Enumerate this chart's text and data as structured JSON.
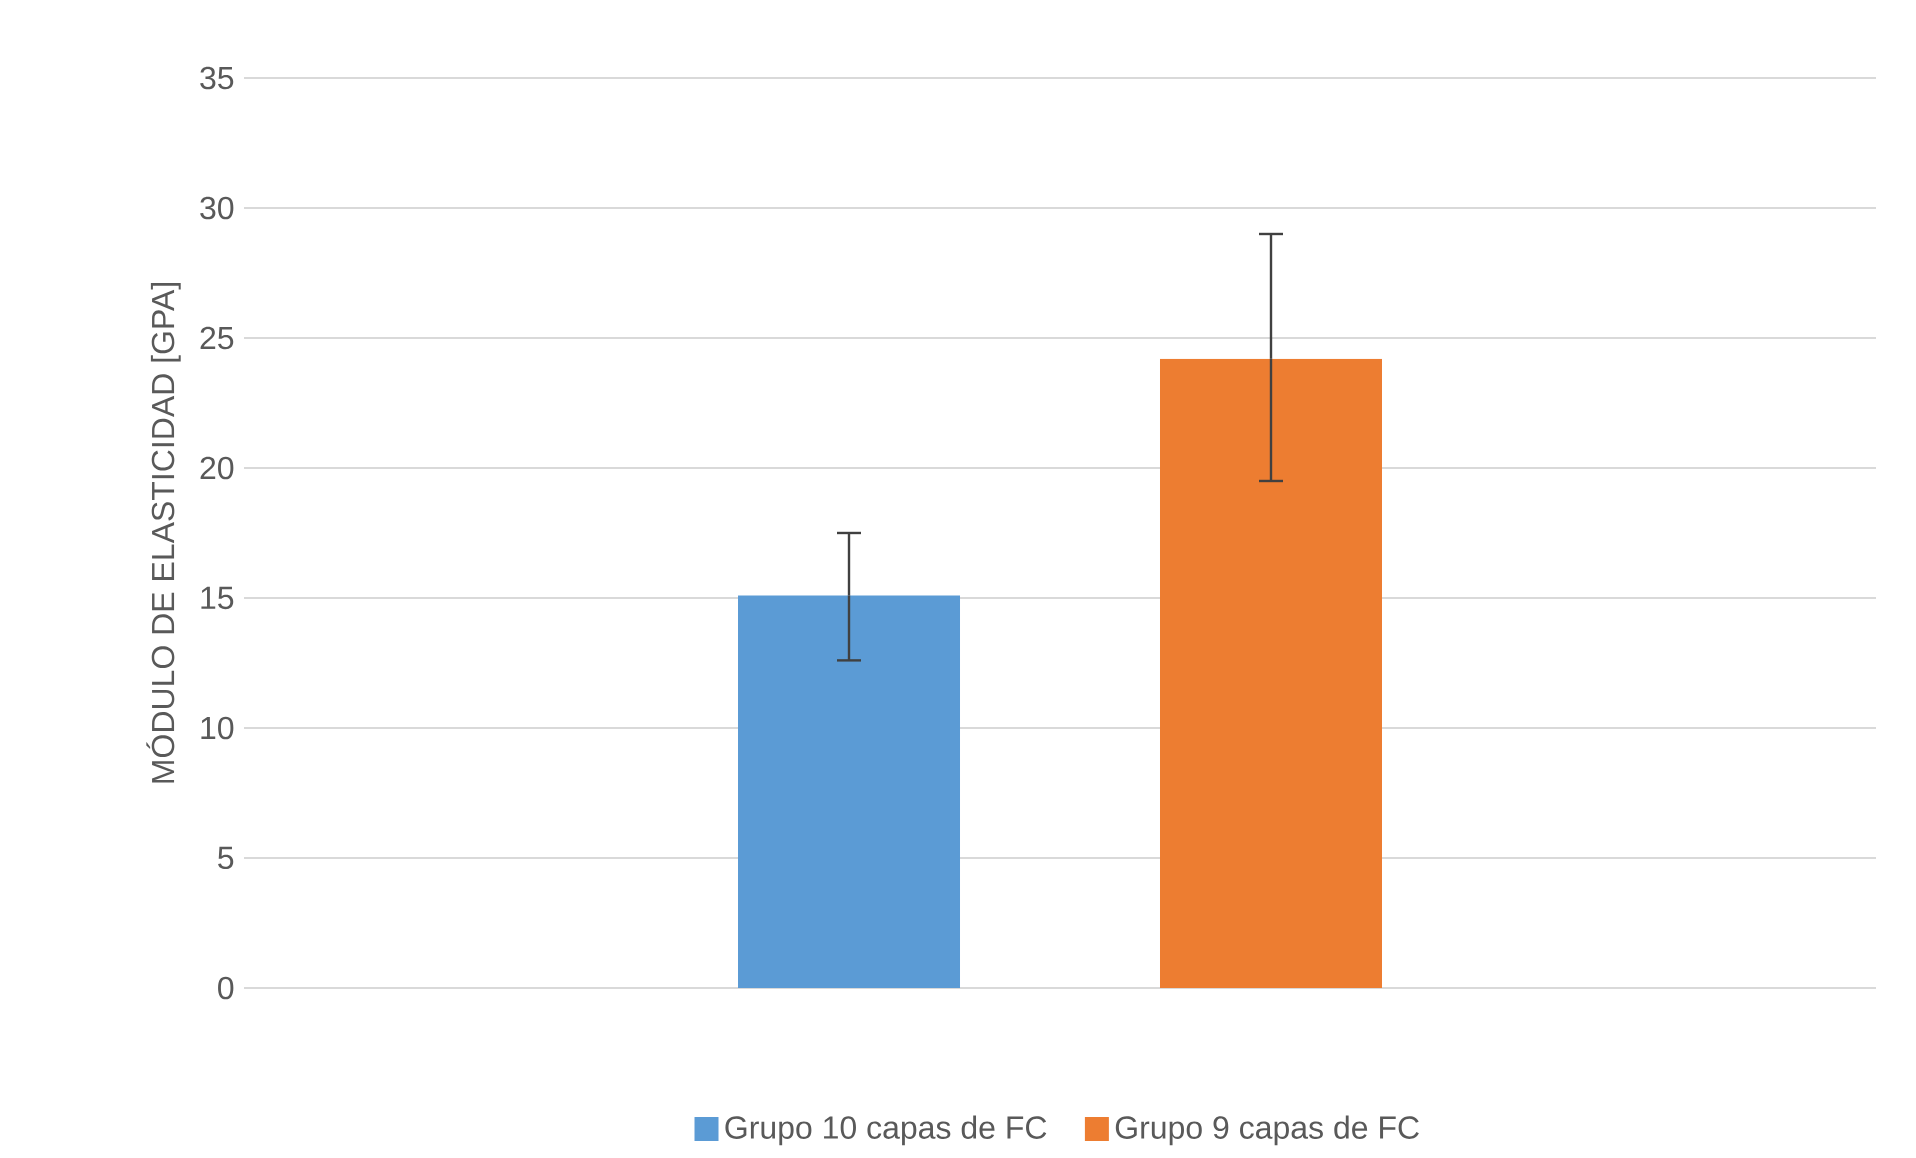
{
  "chart_data": {
    "type": "bar",
    "ylabel": "MÓDULO DE ELASTICIDAD [GPA]",
    "categories": [
      null
    ],
    "series": [
      {
        "name": "Grupo 10 capas de FC",
        "color": "#5b9bd5",
        "values": [
          15.1
        ],
        "errors": [
          [
            12.6,
            17.5
          ]
        ]
      },
      {
        "name": "Grupo 9 capas de FC",
        "color": "#ed7d31",
        "values": [
          24.2
        ],
        "errors": [
          [
            19.5,
            29.0
          ]
        ]
      }
    ],
    "ylim": [
      0,
      35
    ],
    "yticks": [
      0,
      5,
      10,
      15,
      20,
      25,
      30,
      35
    ],
    "grid": "y",
    "legend": "bottom"
  }
}
